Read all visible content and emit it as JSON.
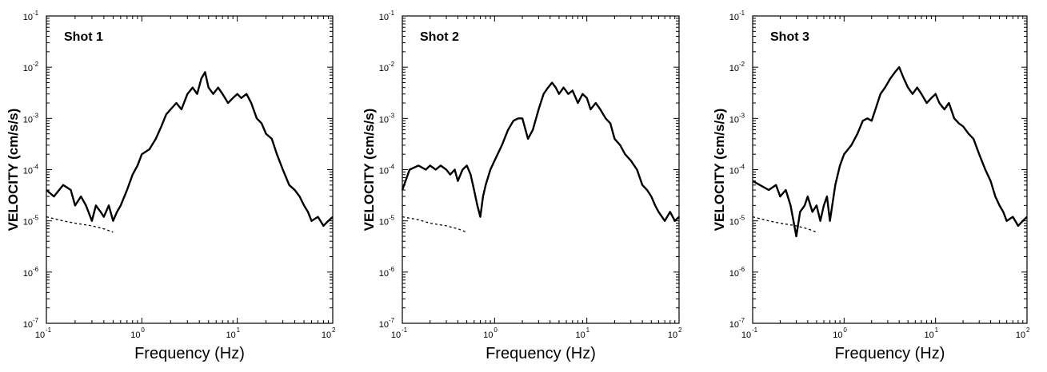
{
  "chart_data": [
    {
      "type": "line",
      "title": "Shot 1",
      "xlabel": "Frequency (Hz)",
      "ylabel": "VELOCITY (cm/s/s)",
      "xscale": "log",
      "yscale": "log",
      "xlim": [
        0.1,
        100
      ],
      "ylim": [
        1e-07,
        0.1
      ],
      "x_ticks": [
        "10",
        "10",
        "10",
        "10"
      ],
      "x_tick_exponents": [
        "-1",
        "0",
        "1",
        "2"
      ],
      "y_ticks": [
        "10",
        "10",
        "10",
        "10",
        "10",
        "10",
        "10"
      ],
      "y_tick_exponents": [
        "-7",
        "-6",
        "-5",
        "-4",
        "-3",
        "-2",
        "-1"
      ],
      "colors": {
        "signal": "#000000",
        "noise": "#000000"
      },
      "series": [
        {
          "style": "thick solid",
          "x": [
            0.1,
            0.12,
            0.15,
            0.18,
            0.2,
            0.23,
            0.26,
            0.3,
            0.33,
            0.37,
            0.4,
            0.45,
            0.5,
            0.55,
            0.6,
            0.7,
            0.8,
            0.9,
            1.0,
            1.2,
            1.4,
            1.6,
            1.8,
            2.0,
            2.3,
            2.6,
            3.0,
            3.4,
            3.8,
            4.2,
            4.6,
            5.0,
            5.6,
            6.3,
            7.0,
            8.0,
            9.0,
            10.0,
            11.0,
            12.5,
            14.0,
            16.0,
            18.0,
            20.0,
            23.0,
            26.0,
            30.0,
            35.0,
            40.0,
            45.0,
            50.0,
            55.0,
            60.0,
            70.0,
            80.0,
            90.0,
            100.0
          ],
          "y": [
            4e-05,
            3e-05,
            5e-05,
            4e-05,
            2e-05,
            3e-05,
            2e-05,
            1e-05,
            2e-05,
            1.5e-05,
            1.2e-05,
            2e-05,
            1e-05,
            1.5e-05,
            2e-05,
            4e-05,
            8e-05,
            0.00012,
            0.0002,
            0.00025,
            0.0004,
            0.0007,
            0.0012,
            0.0015,
            0.002,
            0.0015,
            0.003,
            0.004,
            0.003,
            0.006,
            0.008,
            0.004,
            0.003,
            0.004,
            0.003,
            0.002,
            0.0025,
            0.003,
            0.0025,
            0.003,
            0.002,
            0.001,
            0.0008,
            0.0005,
            0.0004,
            0.0002,
            0.0001,
            5e-05,
            4e-05,
            3e-05,
            2e-05,
            1.5e-05,
            1e-05,
            1.2e-05,
            8e-06,
            1e-05,
            1.2e-05
          ]
        },
        {
          "style": "dotted",
          "x": [
            0.1,
            0.15,
            0.2,
            0.3,
            0.4,
            0.5
          ],
          "y": [
            1.2e-05,
            1e-05,
            9e-06,
            8e-06,
            7e-06,
            6e-06
          ]
        }
      ]
    },
    {
      "type": "line",
      "title": "Shot 2",
      "xlabel": "Frequency (Hz)",
      "ylabel": "VELOCITY (cm/s/s)",
      "xscale": "log",
      "yscale": "log",
      "xlim": [
        0.1,
        100
      ],
      "ylim": [
        1e-07,
        0.1
      ],
      "x_ticks": [
        "10",
        "10",
        "10",
        "10"
      ],
      "x_tick_exponents": [
        "-1",
        "0",
        "1",
        "2"
      ],
      "y_ticks": [
        "10",
        "10",
        "10",
        "10",
        "10",
        "10",
        "10"
      ],
      "y_tick_exponents": [
        "-7",
        "-6",
        "-5",
        "-4",
        "-3",
        "-2",
        "-1"
      ],
      "colors": {
        "signal": "#000000",
        "noise": "#000000"
      },
      "series": [
        {
          "style": "thick solid",
          "x": [
            0.1,
            0.12,
            0.15,
            0.18,
            0.2,
            0.23,
            0.26,
            0.3,
            0.33,
            0.37,
            0.4,
            0.45,
            0.5,
            0.55,
            0.6,
            0.65,
            0.7,
            0.75,
            0.8,
            0.9,
            1.0,
            1.2,
            1.4,
            1.6,
            1.8,
            2.0,
            2.3,
            2.6,
            3.0,
            3.4,
            3.8,
            4.2,
            4.6,
            5.0,
            5.6,
            6.3,
            7.0,
            8.0,
            9.0,
            10.0,
            11.0,
            12.5,
            14.0,
            16.0,
            18.0,
            20.0,
            23.0,
            26.0,
            30.0,
            35.0,
            40.0,
            45.0,
            50.0,
            55.0,
            60.0,
            70.0,
            80.0,
            90.0,
            100.0
          ],
          "y": [
            4e-05,
            0.0001,
            0.00012,
            0.0001,
            0.00012,
            0.0001,
            0.00012,
            0.0001,
            8e-05,
            0.0001,
            6e-05,
            0.0001,
            0.00012,
            8e-05,
            4e-05,
            2e-05,
            1.2e-05,
            3e-05,
            5e-05,
            0.0001,
            0.00015,
            0.0003,
            0.0006,
            0.0009,
            0.001,
            0.001,
            0.0004,
            0.0006,
            0.0015,
            0.003,
            0.004,
            0.005,
            0.004,
            0.003,
            0.004,
            0.003,
            0.0035,
            0.002,
            0.003,
            0.0025,
            0.0015,
            0.002,
            0.0015,
            0.001,
            0.0008,
            0.0004,
            0.0003,
            0.0002,
            0.00015,
            0.0001,
            5e-05,
            4e-05,
            3e-05,
            2e-05,
            1.5e-05,
            1e-05,
            1.5e-05,
            1e-05,
            1.2e-05
          ]
        },
        {
          "style": "dotted",
          "x": [
            0.1,
            0.15,
            0.2,
            0.3,
            0.4,
            0.5
          ],
          "y": [
            1.2e-05,
            1.05e-05,
            9e-06,
            8e-06,
            7e-06,
            6e-06
          ]
        }
      ]
    },
    {
      "type": "line",
      "title": "Shot 3",
      "xlabel": "Frequency (Hz)",
      "ylabel": "VELOCITY (cm/s/s)",
      "xscale": "log",
      "yscale": "log",
      "xlim": [
        0.1,
        100
      ],
      "ylim": [
        1e-07,
        0.1
      ],
      "x_ticks": [
        "10",
        "10",
        "10",
        "10"
      ],
      "x_tick_exponents": [
        "-1",
        "0",
        "1",
        "2"
      ],
      "y_ticks": [
        "10",
        "10",
        "10",
        "10",
        "10",
        "10",
        "10"
      ],
      "y_tick_exponents": [
        "-7",
        "-6",
        "-5",
        "-4",
        "-3",
        "-2",
        "-1"
      ],
      "colors": {
        "signal": "#000000",
        "noise": "#000000"
      },
      "series": [
        {
          "style": "thick solid",
          "x": [
            0.1,
            0.12,
            0.15,
            0.18,
            0.2,
            0.23,
            0.26,
            0.3,
            0.33,
            0.37,
            0.4,
            0.45,
            0.5,
            0.55,
            0.6,
            0.65,
            0.7,
            0.8,
            0.9,
            1.0,
            1.2,
            1.4,
            1.6,
            1.8,
            2.0,
            2.2,
            2.5,
            2.8,
            3.2,
            3.6,
            4.0,
            4.5,
            5.0,
            5.6,
            6.3,
            7.0,
            8.0,
            9.0,
            10.0,
            11.0,
            12.5,
            14.0,
            16.0,
            18.0,
            20.0,
            23.0,
            26.0,
            30.0,
            35.0,
            40.0,
            45.0,
            50.0,
            55.0,
            60.0,
            70.0,
            80.0,
            90.0,
            100.0
          ],
          "y": [
            6e-05,
            5e-05,
            4e-05,
            5e-05,
            3e-05,
            4e-05,
            2e-05,
            5e-06,
            1.5e-05,
            2e-05,
            3e-05,
            1.5e-05,
            2e-05,
            1e-05,
            2e-05,
            3e-05,
            1e-05,
            5e-05,
            0.00012,
            0.0002,
            0.0003,
            0.0005,
            0.0009,
            0.001,
            0.0009,
            0.0015,
            0.003,
            0.004,
            0.006,
            0.008,
            0.01,
            0.006,
            0.004,
            0.003,
            0.004,
            0.003,
            0.002,
            0.0025,
            0.003,
            0.002,
            0.0015,
            0.002,
            0.001,
            0.0008,
            0.0007,
            0.0005,
            0.0004,
            0.0002,
            0.0001,
            6e-05,
            3e-05,
            2e-05,
            1.5e-05,
            1e-05,
            1.2e-05,
            8e-06,
            1e-05,
            1.2e-05
          ]
        },
        {
          "style": "dotted",
          "x": [
            0.1,
            0.15,
            0.2,
            0.3,
            0.4,
            0.5
          ],
          "y": [
            1.2e-05,
            1e-05,
            9e-06,
            8e-06,
            7e-06,
            6e-06
          ]
        }
      ]
    }
  ]
}
